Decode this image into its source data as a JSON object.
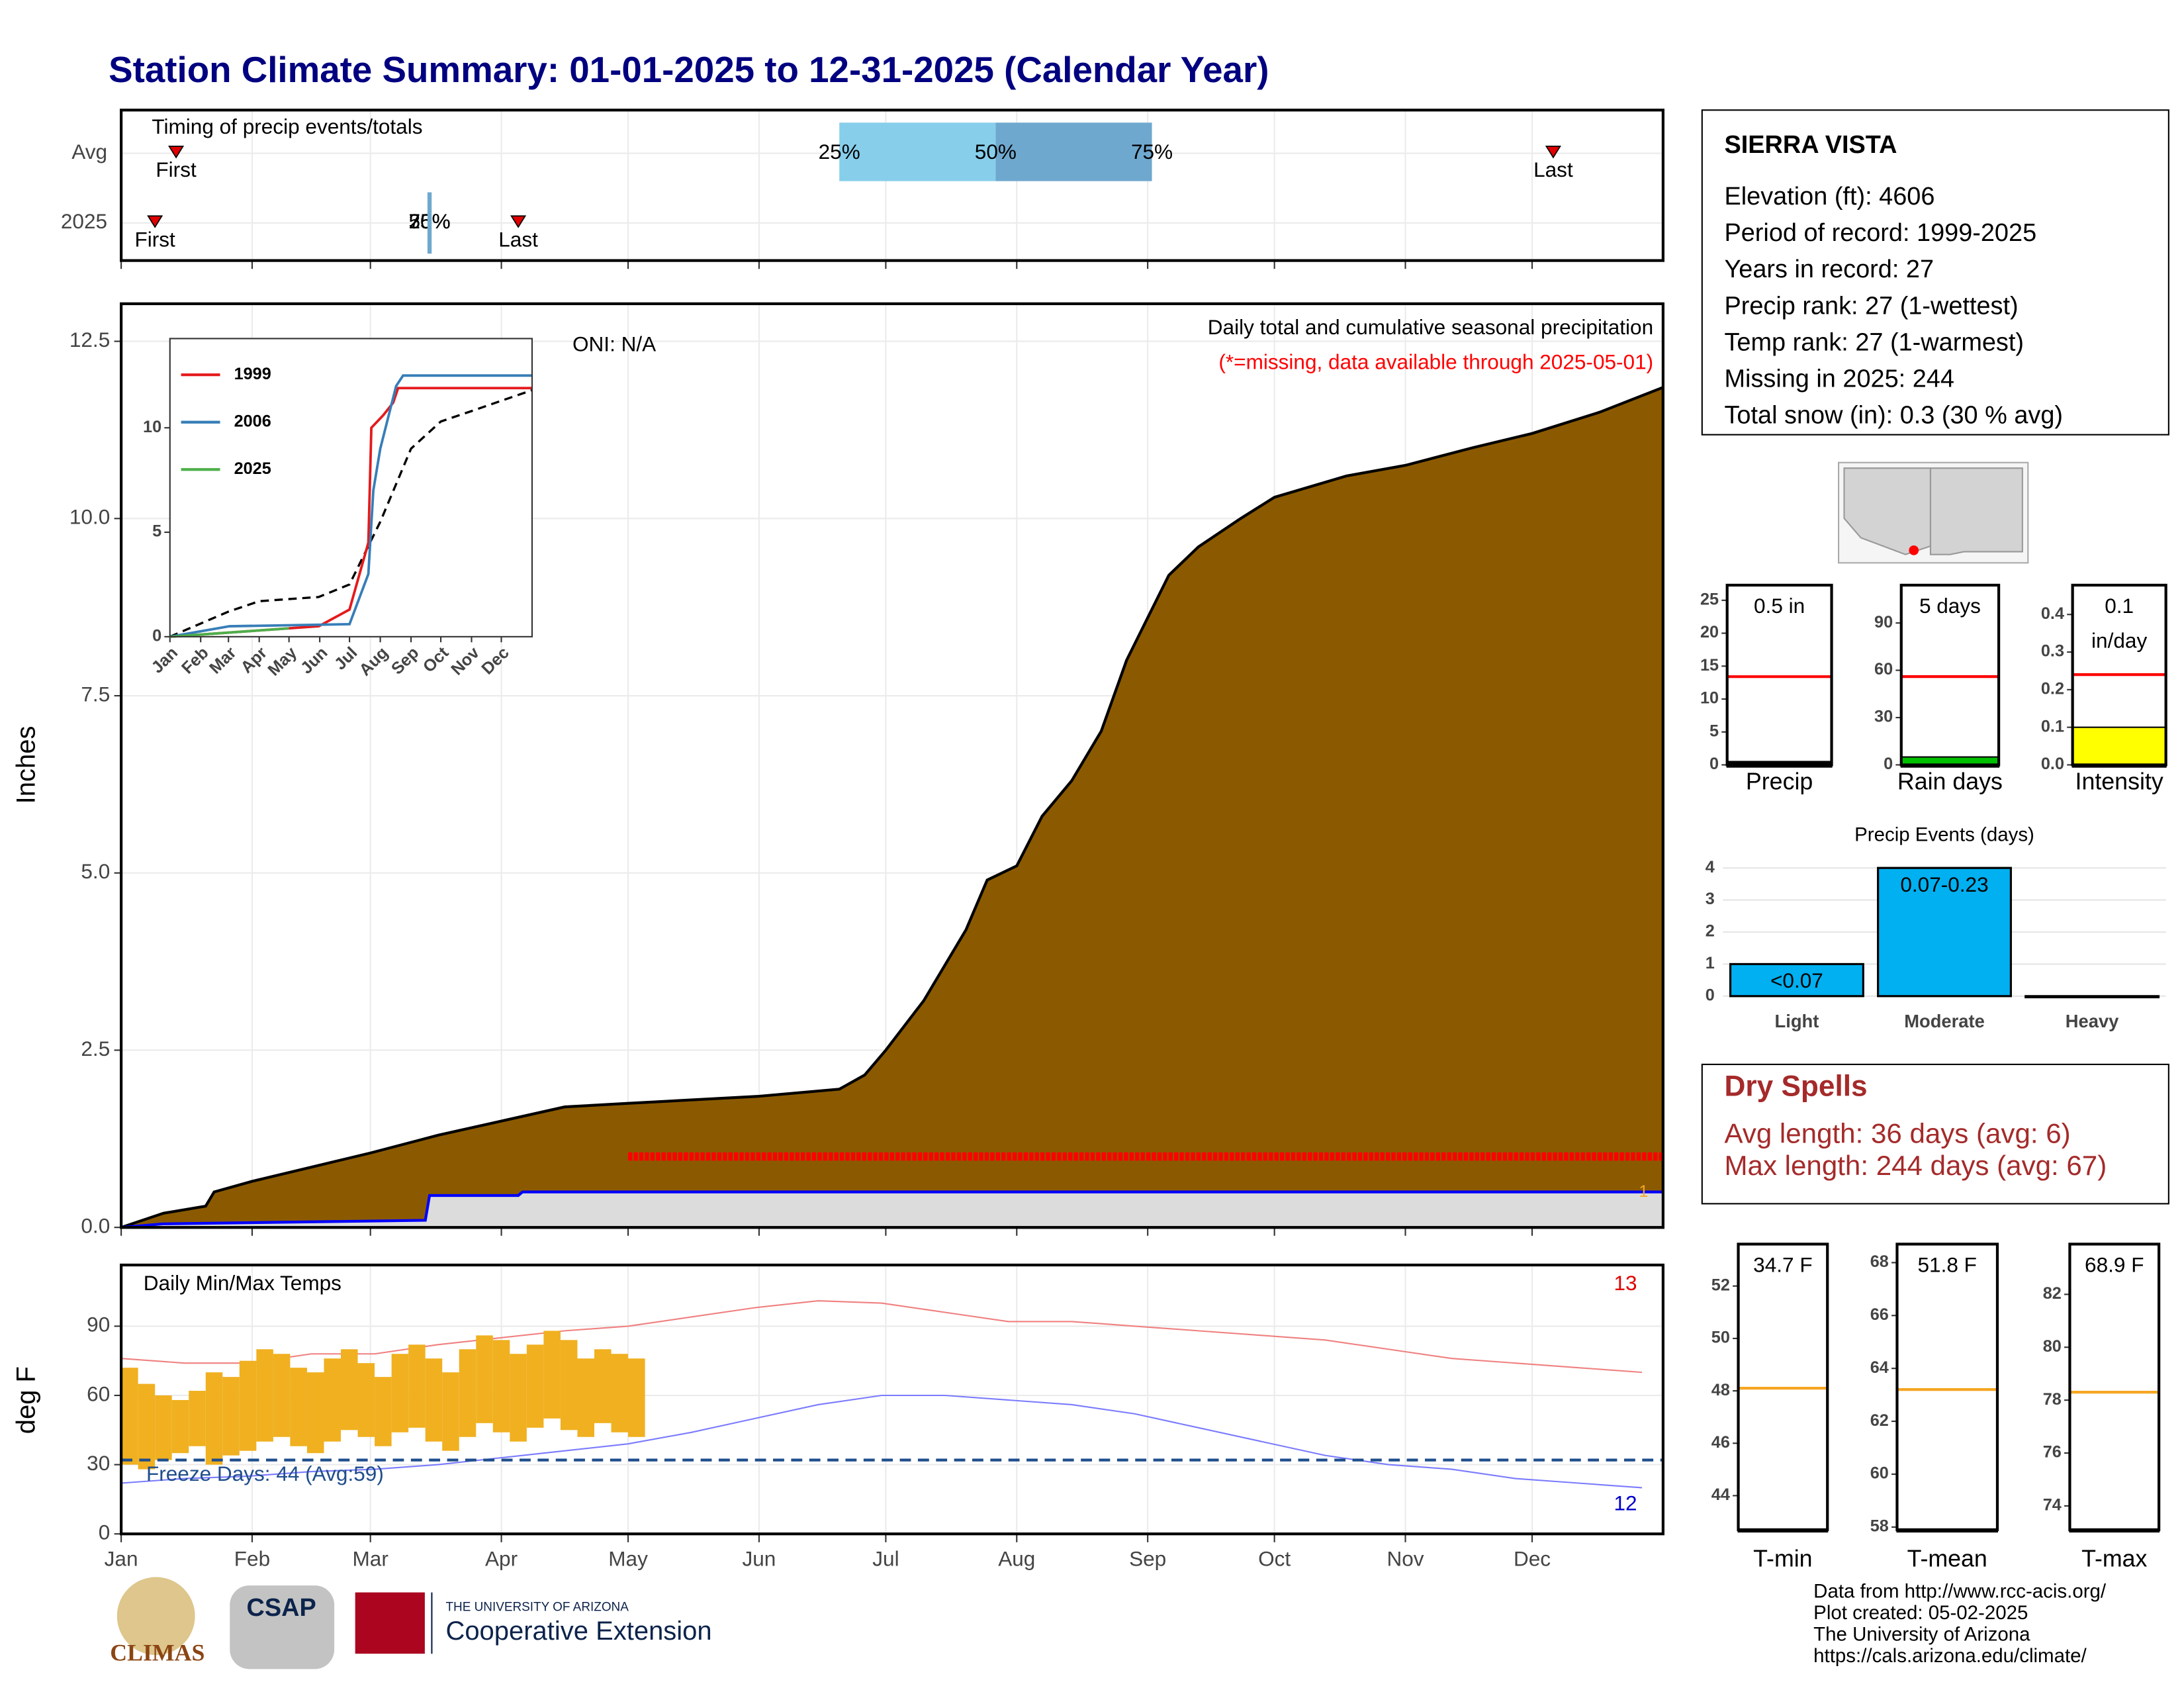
{
  "title": "Station Climate Summary: 01-01-2025 to 12-31-2025 (Calendar Year)",
  "timing": {
    "label": "Timing of precip events/totals",
    "rows": [
      "Avg",
      "2025"
    ],
    "first_label": "First",
    "last_label": "Last",
    "pct_labels": [
      "25%",
      "50%",
      "75%"
    ],
    "avg": {
      "first": 13,
      "last": 339,
      "p25": 170,
      "p50": 207,
      "p75": 244
    },
    "current": {
      "first": 8,
      "last": 94,
      "p25": 73,
      "p50": 73,
      "p75": 73
    },
    "colors": [
      "#87ceeb",
      "#6fa8cf"
    ]
  },
  "station": {
    "name": "SIERRA VISTA",
    "lines": [
      "Elevation (ft): 4606",
      "Period of record: 1999-2025",
      "Years in record: 27",
      "Precip rank: 27 (1-wettest)",
      "Temp rank: 27 (1-warmest)",
      "Missing in 2025: 244",
      "Total snow (in): 0.3 (30 % avg)"
    ]
  },
  "dry_spells": {
    "title": "Dry Spells",
    "lines": [
      "Avg length: 36 days (avg: 6)",
      "Max length: 244 days (avg: 67)"
    ],
    "color": "#a52a2a"
  },
  "footer": {
    "credits": [
      "Data from http://www.rcc-acis.org/",
      "Plot created: 05-02-2025",
      "The University of Arizona",
      "https://cals.arizona.edu/climate/"
    ],
    "logos": [
      "CLIMAS",
      "CSAP",
      "THE UNIVERSITY OF ARIZONA",
      "Cooperative Extension"
    ]
  },
  "chart_data": [
    {
      "type": "area",
      "y_label": "Inches",
      "annotations": [
        "ONI: N/A",
        "Daily total and cumulative seasonal precipitation",
        "(*=missing, data available through 2025-05-01)"
      ],
      "end_label": "1",
      "xlim": [
        0,
        365
      ],
      "ylim": [
        0,
        13.03
      ],
      "yticks": [
        {
          "value": 0,
          "label": "0.0"
        },
        2.5,
        {
          "value": 5,
          "label": "5.0"
        },
        7.5,
        {
          "value": 10,
          "label": "10.0"
        },
        12.5
      ],
      "grid": true,
      "series": [
        {
          "color": "#8b5a00",
          "x": [
            0,
            10,
            20,
            22,
            31,
            45,
            59,
            75,
            90,
            105,
            120,
            151,
            170,
            176,
            181,
            190,
            200,
            205,
            212,
            218,
            225,
            232,
            238,
            243,
            248,
            255,
            265,
            273,
            290,
            304,
            320,
            334,
            350,
            365
          ],
          "values": [
            0,
            0.2,
            0.3,
            0.5,
            0.65,
            0.85,
            1.05,
            1.3,
            1.5,
            1.7,
            1.75,
            1.85,
            1.95,
            2.15,
            2.5,
            3.2,
            4.2,
            4.9,
            5.1,
            5.8,
            6.3,
            7.0,
            8.0,
            8.6,
            9.2,
            9.6,
            10.0,
            10.3,
            10.6,
            10.75,
            11.0,
            11.2,
            11.5,
            11.85
          ]
        },
        {
          "color": "#0000ff",
          "fill": "#dcdcdc",
          "x": [
            0,
            10,
            72,
            73,
            94,
            95,
            365
          ],
          "values": [
            0,
            0.05,
            0.1,
            0.45,
            0.45,
            0.5,
            0.5
          ]
        }
      ],
      "missing": {
        "color": "#ff0000",
        "x": [
          120,
          365
        ],
        "values": [
          1,
          1
        ]
      }
    },
    {
      "type": "line",
      "legend": "top-left",
      "xlim": [
        0,
        365
      ],
      "ylim": [
        0,
        14.27
      ],
      "xticks": [
        {
          "value": 0,
          "label": "Jan"
        },
        {
          "value": 31,
          "label": "Feb"
        },
        {
          "value": 59,
          "label": "Mar"
        },
        {
          "value": 90,
          "label": "Apr"
        },
        {
          "value": 120,
          "label": "May"
        },
        {
          "value": 151,
          "label": "Jun"
        },
        {
          "value": 181,
          "label": "Jul"
        },
        {
          "value": 212,
          "label": "Aug"
        },
        {
          "value": 243,
          "label": "Sep"
        },
        {
          "value": 273,
          "label": "Oct"
        },
        {
          "value": 304,
          "label": "Nov"
        },
        {
          "value": 334,
          "label": "Dec"
        }
      ],
      "yticks": [
        0,
        5,
        10
      ],
      "series": [
        {
          "name": "1999",
          "color": "#e41a1c",
          "x": [
            0,
            90,
            150,
            181,
            200,
            203,
            215,
            225,
            230,
            365
          ],
          "values": [
            0,
            0.3,
            0.5,
            1.3,
            4.5,
            10,
            10.6,
            11.2,
            11.9,
            11.9
          ]
        },
        {
          "name": "2006",
          "color": "#377eb8",
          "x": [
            0,
            60,
            181,
            200,
            205,
            212,
            220,
            228,
            235,
            365
          ],
          "values": [
            0,
            0.5,
            0.6,
            3,
            7,
            9,
            10.5,
            12,
            12.5,
            12.5
          ]
        },
        {
          "name": "2025",
          "color": "#4daf4a",
          "x": [
            0,
            90,
            120
          ],
          "values": [
            0,
            0.3,
            0.4
          ]
        }
      ],
      "average": {
        "color": "#000000",
        "x": [
          0,
          59,
          90,
          150,
          181,
          212,
          243,
          273,
          304,
          365
        ],
        "values": [
          0,
          1.2,
          1.7,
          1.9,
          2.5,
          5.5,
          9,
          10.3,
          10.8,
          11.8
        ]
      }
    },
    {
      "type": "range",
      "title": "Daily Min/Max Temps",
      "y_label": "deg F",
      "xlim": [
        0,
        365
      ],
      "ylim": [
        0,
        116.5
      ],
      "xticks": [
        {
          "value": 0,
          "label": "Jan"
        },
        {
          "value": 31,
          "label": "Feb"
        },
        {
          "value": 59,
          "label": "Mar"
        },
        {
          "value": 90,
          "label": "Apr"
        },
        {
          "value": 120,
          "label": "May"
        },
        {
          "value": 151,
          "label": "Jun"
        },
        {
          "value": 181,
          "label": "Jul"
        },
        {
          "value": 212,
          "label": "Aug"
        },
        {
          "value": 243,
          "label": "Sep"
        },
        {
          "value": 273,
          "label": "Oct"
        },
        {
          "value": 304,
          "label": "Nov"
        },
        {
          "value": 334,
          "label": "Dec"
        }
      ],
      "yticks": [
        0,
        30,
        60,
        90
      ],
      "avg_max": {
        "color": "#f08080",
        "x": [
          0,
          15,
          30,
          45,
          60,
          75,
          90,
          105,
          120,
          135,
          150,
          165,
          180,
          195,
          210,
          225,
          240,
          255,
          270,
          285,
          300,
          315,
          330,
          345,
          360
        ],
        "values": [
          76,
          74,
          74,
          78,
          78,
          82,
          85,
          88,
          90,
          94,
          98,
          101,
          100,
          96,
          92,
          92,
          90,
          88,
          86,
          84,
          80,
          76,
          74,
          72,
          70
        ]
      },
      "avg_min": {
        "color": "#7b7bff",
        "x": [
          0,
          15,
          30,
          45,
          60,
          75,
          90,
          105,
          120,
          135,
          150,
          165,
          180,
          195,
          210,
          225,
          240,
          255,
          270,
          285,
          300,
          315,
          330,
          345,
          360
        ],
        "values": [
          22,
          24,
          25,
          27,
          28,
          30,
          33,
          36,
          39,
          44,
          50,
          56,
          60,
          60,
          58,
          56,
          52,
          46,
          40,
          34,
          30,
          28,
          24,
          22,
          20
        ]
      },
      "current": {
        "color": "#f0b020",
        "x": [
          0,
          4,
          8,
          12,
          16,
          20,
          24,
          28,
          32,
          36,
          40,
          44,
          48,
          52,
          56,
          60,
          64,
          68,
          72,
          76,
          80,
          84,
          88,
          92,
          96,
          100,
          104,
          108,
          112,
          116,
          120
        ],
        "low": [
          30,
          28,
          32,
          35,
          38,
          30,
          34,
          36,
          40,
          42,
          38,
          35,
          40,
          45,
          42,
          38,
          44,
          46,
          40,
          36,
          42,
          48,
          44,
          40,
          46,
          50,
          45,
          42,
          48,
          44,
          42
        ],
        "high": [
          72,
          65,
          60,
          58,
          62,
          70,
          68,
          75,
          80,
          78,
          72,
          70,
          76,
          80,
          74,
          68,
          78,
          82,
          76,
          70,
          80,
          86,
          84,
          78,
          82,
          88,
          84,
          76,
          80,
          78,
          76
        ]
      },
      "freeze": {
        "value": 32,
        "label": "Freeze Days: 44 (Avg:59)",
        "color": "#1f4e8c"
      },
      "max_count": "13",
      "min_count": "12"
    },
    {
      "type": "gauge",
      "label": "Precip",
      "value": 0.5,
      "value_labels": [
        "0.5 in"
      ],
      "avg": 13.4,
      "avg_color": "#ff0000",
      "color": "#000000",
      "ylim": [
        0,
        27.3
      ],
      "yticks": [
        0,
        5,
        10,
        15,
        20,
        25
      ]
    },
    {
      "type": "gauge",
      "label": "Rain days",
      "value": 5,
      "value_labels": [
        "5 days"
      ],
      "avg": 56,
      "avg_color": "#ff0000",
      "color": "#00c000",
      "ylim": [
        0,
        114
      ],
      "yticks": [
        0,
        30,
        60,
        90
      ]
    },
    {
      "type": "gauge",
      "label": "Intensity",
      "value": 0.1,
      "value_labels": [
        "0.1",
        "in/day"
      ],
      "avg": 0.24,
      "avg_color": "#ff0000",
      "color": "#ffff00",
      "ylim": [
        0,
        0.478
      ],
      "yticks": [
        {
          "value": 0,
          "label": "0.0"
        },
        0.1,
        0.2,
        0.3,
        0.4
      ]
    },
    {
      "type": "bar",
      "title": "Precip Events (days)",
      "categories": [
        "Light",
        "Moderate",
        "Heavy"
      ],
      "values": [
        1,
        4,
        0
      ],
      "value_labels": [
        "<0.07",
        "0.07-0.23",
        null
      ],
      "color": "#00b0f0",
      "ylim": [
        0,
        4.26
      ],
      "yticks": [
        0,
        1,
        2,
        3,
        4
      ],
      "grid": true
    },
    {
      "type": "gauge",
      "label": "T-min",
      "value": 34.7,
      "value_labels": [
        "34.7 F"
      ],
      "avg": 48.1,
      "avg_color": "#f5a623",
      "color": "#000000",
      "ylim": [
        42.7,
        53.6
      ],
      "yticks": [
        44,
        46,
        48,
        50,
        52
      ]
    },
    {
      "type": "gauge",
      "label": "T-mean",
      "value": 51.8,
      "value_labels": [
        "51.8 F"
      ],
      "avg": 63.2,
      "avg_color": "#f5a623",
      "color": "#000000",
      "ylim": [
        57.9,
        68.7
      ],
      "yticks": [
        58,
        60,
        62,
        64,
        66,
        68
      ]
    },
    {
      "type": "gauge",
      "label": "T-max",
      "value": 68.9,
      "value_labels": [
        "68.9 F"
      ],
      "avg": 78.3,
      "avg_color": "#f5a623",
      "color": "#000000",
      "ylim": [
        73.1,
        83.9
      ],
      "yticks": [
        74,
        76,
        78,
        80,
        82
      ]
    }
  ]
}
